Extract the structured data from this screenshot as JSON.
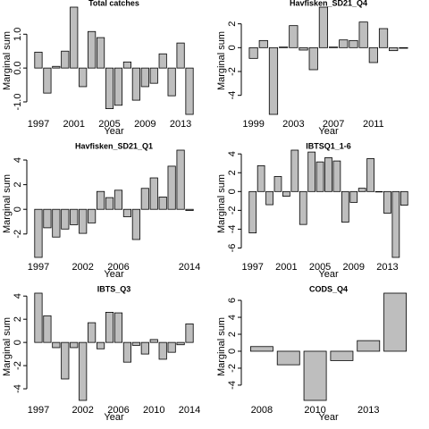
{
  "chart_data": [
    {
      "type": "bar",
      "title": "Total catches",
      "x_label": "Year",
      "y_label": "Marginal sum",
      "color": "#bebebe",
      "categories": [
        "1997",
        null,
        null,
        null,
        "2001",
        null,
        null,
        null,
        "2005",
        null,
        null,
        null,
        "2009",
        null,
        null,
        null,
        "2013",
        null
      ],
      "values": [
        0.47,
        -0.74,
        0.05,
        0.5,
        1.8,
        -0.55,
        1.08,
        0.9,
        -1.2,
        -1.1,
        0.18,
        -0.95,
        -0.55,
        -0.45,
        0.42,
        -0.82,
        0.74,
        -1.37
      ],
      "ylim": [
        -1.37,
        1.8
      ],
      "yticks": [
        {
          "value": -1,
          "label": "-1.0"
        },
        {
          "value": 0,
          "label": "0.0"
        },
        {
          "value": 1,
          "label": "1.0"
        }
      ]
    },
    {
      "type": "bar",
      "title": "Havfisken_SD21_Q4",
      "x_label": "Year",
      "y_label": "Marginal sum",
      "color": "#bebebe",
      "categories": [
        "1999",
        null,
        null,
        null,
        "2003",
        null,
        null,
        null,
        "2007",
        null,
        null,
        null,
        "2011",
        null,
        null,
        null
      ],
      "values": [
        -0.9,
        0.6,
        -5.6,
        0.05,
        1.85,
        -0.2,
        -1.85,
        3.4,
        0.05,
        0.65,
        0.6,
        2.15,
        -1.25,
        1.6,
        -0.25,
        -0.05
      ],
      "ylim": [
        -5.6,
        3.4
      ],
      "yticks": [
        -4,
        -2,
        0,
        2
      ]
    },
    {
      "type": "bar",
      "title": "Havfisken_SD21_Q1",
      "x_label": "Year",
      "y_label": "Marginal sum",
      "color": "#bebebe",
      "categories": [
        "1997",
        null,
        null,
        null,
        null,
        "2002",
        null,
        null,
        null,
        "2006",
        null,
        null,
        null,
        null,
        null,
        null,
        null,
        "2014"
      ],
      "values": [
        -3.9,
        -1.5,
        -2.25,
        -1.6,
        -1.25,
        -1.95,
        -1.1,
        1.45,
        0.95,
        1.55,
        -0.6,
        -2.45,
        1.7,
        2.55,
        1.0,
        3.5,
        4.8,
        -0.1
      ],
      "ylim": [
        -3.9,
        4.8
      ],
      "yticks": [
        -2,
        0,
        2,
        4
      ]
    },
    {
      "type": "bar",
      "title": "IBTSQ1_1-6",
      "x_label": "Year",
      "y_label": "Marginal sum",
      "color": "#bebebe",
      "categories": [
        "1997",
        null,
        null,
        null,
        "2001",
        null,
        null,
        null,
        "2005",
        null,
        null,
        null,
        "2009",
        null,
        null,
        null,
        "2013",
        null,
        null
      ],
      "values": [
        -4.4,
        2.75,
        -1.4,
        1.6,
        -0.5,
        4.4,
        -3.5,
        4.2,
        3.15,
        3.6,
        3.25,
        -3.25,
        -1.15,
        0.35,
        3.5,
        0,
        -2.3,
        -7.0,
        -1.45
      ],
      "ylim": [
        -7.0,
        4.4
      ],
      "yticks": [
        -6,
        -4,
        -2,
        0,
        2,
        4
      ]
    },
    {
      "type": "bar",
      "title": "IBTS_Q3",
      "x_label": "Year",
      "y_label": "Marginal sum",
      "color": "#bebebe",
      "categories": [
        "1997",
        null,
        null,
        null,
        null,
        "2002",
        null,
        null,
        null,
        "2006",
        null,
        null,
        null,
        "2010",
        null,
        null,
        null,
        "2014"
      ],
      "values": [
        4.25,
        2.3,
        -0.45,
        -3.15,
        -0.45,
        -5.0,
        1.7,
        -0.55,
        2.6,
        2.55,
        -1.7,
        -0.25,
        -1.0,
        0.25,
        -1.45,
        -0.85,
        -0.2,
        1.6
      ],
      "ylim": [
        -5.0,
        4.25
      ],
      "yticks": [
        -4,
        -2,
        0,
        2,
        4
      ]
    },
    {
      "type": "bar",
      "title": "CODS_Q4",
      "x_label": "Year",
      "y_label": "Marginal sum",
      "color": "#bebebe",
      "categories": [
        "2008",
        null,
        "2010",
        null,
        "2013",
        null
      ],
      "values": [
        0.55,
        -1.6,
        -5.8,
        -1.1,
        1.25,
        6.85
      ],
      "ylim": [
        -5.8,
        6.85
      ],
      "yticks": [
        -4,
        -2,
        0,
        2,
        4,
        6
      ]
    }
  ]
}
